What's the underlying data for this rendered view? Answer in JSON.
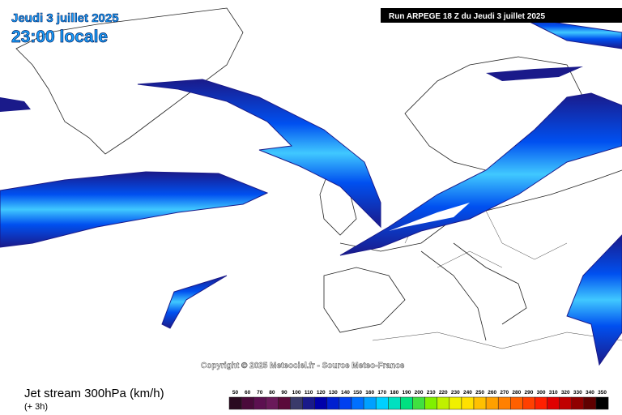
{
  "header": {
    "title": "Jeudi 3 juillet 2025",
    "time": "23:00 locale",
    "run": "Run ARPEGE 18 Z du Jeudi 3 juillet 2025"
  },
  "copyright": "Copyright © 2025 Meteociel.fr - Source Meteo-France",
  "footer": {
    "field": "Jet stream 300hPa (km/h)",
    "lead": "(+ 3h)"
  },
  "legend": {
    "levels": [
      50,
      60,
      70,
      80,
      90,
      100,
      110,
      120,
      130,
      140,
      150,
      160,
      170,
      180,
      190,
      200,
      210,
      220,
      230,
      240,
      250,
      260,
      270,
      280,
      290,
      300,
      310,
      320,
      330,
      340,
      350
    ],
    "colors": [
      "#2a0a20",
      "#4a0a3a",
      "#5c1050",
      "#6a1a5a",
      "#5a0a3a",
      "#3a3a6a",
      "#1a1a8a",
      "#0000aa",
      "#0020d0",
      "#0040f0",
      "#0070ff",
      "#00a0ff",
      "#00d0ff",
      "#00e0c0",
      "#00e080",
      "#40e040",
      "#80f000",
      "#c0f000",
      "#f0f000",
      "#ffe000",
      "#ffc000",
      "#ffa000",
      "#ff8000",
      "#ff6000",
      "#ff4000",
      "#ff2000",
      "#e00000",
      "#c00000",
      "#900000",
      "#600000",
      "#000000"
    ]
  }
}
